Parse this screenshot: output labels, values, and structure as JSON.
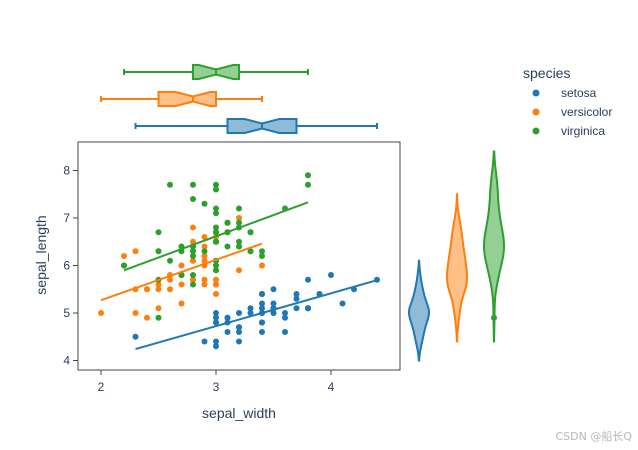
{
  "chart_data": {
    "type": "scatter",
    "xlabel": "sepal_width",
    "ylabel": "sepal_length",
    "xlim": [
      1.8,
      4.6
    ],
    "ylim": [
      3.8,
      8.6
    ],
    "xticks": [
      "2",
      "3",
      "4"
    ],
    "xtick_values": [
      2,
      3,
      4
    ],
    "yticks": [
      "4",
      "5",
      "6",
      "7",
      "8"
    ],
    "ytick_values": [
      4,
      5,
      6,
      7,
      8
    ],
    "grid": false,
    "legend": {
      "title": "species",
      "placement": "top-right"
    },
    "marginal_x": "box",
    "marginal_y": "violin",
    "trendline": "ols",
    "series": [
      {
        "name": "setosa",
        "color": "#1f77b4",
        "points": [
          [
            3.5,
            5.1
          ],
          [
            3.0,
            4.9
          ],
          [
            3.2,
            4.7
          ],
          [
            3.1,
            4.6
          ],
          [
            3.6,
            5.0
          ],
          [
            3.9,
            5.4
          ],
          [
            3.4,
            4.6
          ],
          [
            3.4,
            5.0
          ],
          [
            2.9,
            4.4
          ],
          [
            3.1,
            4.9
          ],
          [
            3.7,
            5.4
          ],
          [
            3.4,
            4.8
          ],
          [
            3.0,
            4.8
          ],
          [
            3.0,
            4.3
          ],
          [
            4.0,
            5.8
          ],
          [
            4.4,
            5.7
          ],
          [
            3.9,
            5.4
          ],
          [
            3.5,
            5.1
          ],
          [
            3.8,
            5.7
          ],
          [
            3.8,
            5.1
          ],
          [
            3.4,
            5.4
          ],
          [
            3.7,
            5.1
          ],
          [
            3.6,
            4.6
          ],
          [
            3.3,
            5.1
          ],
          [
            3.4,
            4.8
          ],
          [
            3.0,
            5.0
          ],
          [
            3.4,
            5.0
          ],
          [
            3.5,
            5.2
          ],
          [
            3.4,
            5.2
          ],
          [
            3.2,
            4.7
          ],
          [
            3.1,
            4.8
          ],
          [
            3.4,
            5.4
          ],
          [
            4.1,
            5.2
          ],
          [
            4.2,
            5.5
          ],
          [
            3.1,
            4.9
          ],
          [
            3.2,
            5.0
          ],
          [
            3.5,
            5.5
          ],
          [
            3.6,
            4.9
          ],
          [
            3.0,
            4.4
          ],
          [
            3.4,
            5.1
          ],
          [
            3.5,
            5.0
          ],
          [
            2.3,
            4.5
          ],
          [
            3.2,
            4.4
          ],
          [
            3.5,
            5.0
          ],
          [
            3.8,
            5.1
          ],
          [
            3.0,
            4.8
          ],
          [
            3.8,
            5.1
          ],
          [
            3.2,
            4.6
          ],
          [
            3.7,
            5.3
          ],
          [
            3.3,
            5.0
          ]
        ],
        "trend": [
          [
            2.3,
            4.24
          ],
          [
            4.4,
            5.69
          ]
        ],
        "box": {
          "min": 2.3,
          "q1": 3.1,
          "median": 3.4,
          "q3": 3.7,
          "max": 4.4
        },
        "violin": {
          "min": 4.0,
          "max": 6.1,
          "outliers": []
        }
      },
      {
        "name": "versicolor",
        "color": "#ff7f0e",
        "points": [
          [
            3.2,
            7.0
          ],
          [
            3.2,
            6.4
          ],
          [
            3.1,
            6.9
          ],
          [
            2.3,
            5.5
          ],
          [
            2.8,
            6.5
          ],
          [
            2.8,
            5.7
          ],
          [
            3.3,
            6.3
          ],
          [
            2.4,
            4.9
          ],
          [
            2.9,
            6.6
          ],
          [
            2.7,
            5.2
          ],
          [
            2.0,
            5.0
          ],
          [
            3.0,
            5.9
          ],
          [
            2.2,
            6.0
          ],
          [
            2.9,
            6.1
          ],
          [
            2.9,
            5.6
          ],
          [
            3.1,
            6.7
          ],
          [
            3.0,
            5.6
          ],
          [
            2.7,
            5.8
          ],
          [
            2.2,
            6.2
          ],
          [
            2.5,
            5.6
          ],
          [
            3.2,
            5.9
          ],
          [
            2.8,
            6.1
          ],
          [
            2.5,
            6.3
          ],
          [
            2.8,
            6.1
          ],
          [
            2.9,
            6.4
          ],
          [
            3.0,
            6.6
          ],
          [
            2.8,
            6.8
          ],
          [
            3.0,
            6.7
          ],
          [
            2.9,
            6.0
          ],
          [
            2.6,
            5.7
          ],
          [
            2.4,
            5.5
          ],
          [
            2.4,
            5.5
          ],
          [
            2.7,
            5.8
          ],
          [
            2.7,
            6.0
          ],
          [
            3.0,
            5.4
          ],
          [
            3.4,
            6.0
          ],
          [
            3.1,
            6.7
          ],
          [
            2.3,
            6.3
          ],
          [
            3.0,
            5.6
          ],
          [
            2.5,
            5.5
          ],
          [
            2.6,
            5.5
          ],
          [
            3.0,
            6.1
          ],
          [
            2.6,
            5.8
          ],
          [
            2.3,
            5.0
          ],
          [
            2.7,
            5.6
          ],
          [
            3.0,
            5.7
          ],
          [
            2.9,
            5.7
          ],
          [
            2.9,
            6.2
          ],
          [
            2.5,
            5.1
          ],
          [
            2.8,
            5.7
          ]
        ],
        "trend": [
          [
            2.0,
            5.27
          ],
          [
            3.4,
            6.46
          ]
        ],
        "box": {
          "min": 2.0,
          "q1": 2.5,
          "median": 2.8,
          "q3": 3.0,
          "max": 3.4
        },
        "violin": {
          "min": 4.4,
          "max": 7.5,
          "outliers": []
        }
      },
      {
        "name": "virginica",
        "color": "#2ca02c",
        "points": [
          [
            3.3,
            6.3
          ],
          [
            2.7,
            5.8
          ],
          [
            3.0,
            7.1
          ],
          [
            2.9,
            6.3
          ],
          [
            3.0,
            6.5
          ],
          [
            3.0,
            7.6
          ],
          [
            2.5,
            4.9
          ],
          [
            2.9,
            7.3
          ],
          [
            2.5,
            6.7
          ],
          [
            3.6,
            7.2
          ],
          [
            3.2,
            6.5
          ],
          [
            2.7,
            6.4
          ],
          [
            3.0,
            6.8
          ],
          [
            2.5,
            5.7
          ],
          [
            2.8,
            5.8
          ],
          [
            3.2,
            6.4
          ],
          [
            3.0,
            6.5
          ],
          [
            3.8,
            7.7
          ],
          [
            2.6,
            7.7
          ],
          [
            2.2,
            6.0
          ],
          [
            3.2,
            6.9
          ],
          [
            2.8,
            5.6
          ],
          [
            2.8,
            7.7
          ],
          [
            2.7,
            6.3
          ],
          [
            3.3,
            6.7
          ],
          [
            3.2,
            7.2
          ],
          [
            2.8,
            6.2
          ],
          [
            3.0,
            6.1
          ],
          [
            2.8,
            6.4
          ],
          [
            3.0,
            7.2
          ],
          [
            2.8,
            7.4
          ],
          [
            3.8,
            7.9
          ],
          [
            2.8,
            6.4
          ],
          [
            2.8,
            6.3
          ],
          [
            2.6,
            6.1
          ],
          [
            3.0,
            7.7
          ],
          [
            3.4,
            6.3
          ],
          [
            3.1,
            6.4
          ],
          [
            3.0,
            6.0
          ],
          [
            3.1,
            6.9
          ],
          [
            3.1,
            6.7
          ],
          [
            3.1,
            6.9
          ],
          [
            2.7,
            5.8
          ],
          [
            3.2,
            6.8
          ],
          [
            3.3,
            6.7
          ],
          [
            3.0,
            6.7
          ],
          [
            2.5,
            6.3
          ],
          [
            3.0,
            6.5
          ],
          [
            3.4,
            6.2
          ],
          [
            3.0,
            5.9
          ]
        ],
        "trend": [
          [
            2.2,
            5.9
          ],
          [
            3.8,
            7.33
          ]
        ],
        "box": {
          "min": 2.2,
          "q1": 2.8,
          "median": 3.0,
          "q3": 3.2,
          "max": 3.8
        },
        "violin": {
          "min": 4.4,
          "max": 8.4,
          "outliers": [
            4.9
          ]
        }
      }
    ]
  },
  "watermark": "CSDN @船长Q"
}
